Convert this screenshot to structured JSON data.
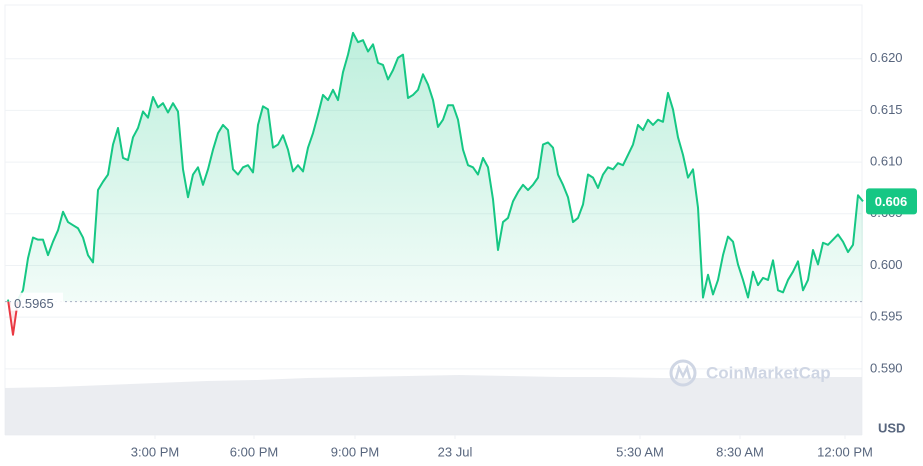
{
  "chart_data": {
    "type": "line",
    "values": [
      0.5967,
      0.5933,
      0.5967,
      0.5976,
      0.6007,
      0.6027,
      0.6025,
      0.6025,
      0.601,
      0.6023,
      0.6034,
      0.6052,
      0.6042,
      0.6039,
      0.6036,
      0.6027,
      0.601,
      0.6003,
      0.6073,
      0.6081,
      0.6088,
      0.6117,
      0.6133,
      0.6104,
      0.6102,
      0.6124,
      0.6133,
      0.6149,
      0.6143,
      0.6163,
      0.6153,
      0.6157,
      0.6148,
      0.6157,
      0.6149,
      0.6093,
      0.6066,
      0.6088,
      0.6095,
      0.6078,
      0.6093,
      0.6112,
      0.6128,
      0.6136,
      0.6131,
      0.6093,
      0.6088,
      0.6095,
      0.6097,
      0.609,
      0.6136,
      0.6154,
      0.6151,
      0.6114,
      0.6117,
      0.6126,
      0.6112,
      0.6091,
      0.6097,
      0.6091,
      0.6114,
      0.6128,
      0.6146,
      0.6165,
      0.616,
      0.617,
      0.616,
      0.6187,
      0.6204,
      0.6225,
      0.6216,
      0.6218,
      0.6207,
      0.6214,
      0.6196,
      0.6194,
      0.618,
      0.6189,
      0.6201,
      0.6204,
      0.6162,
      0.6165,
      0.617,
      0.6185,
      0.6175,
      0.616,
      0.6134,
      0.6141,
      0.6155,
      0.6155,
      0.6141,
      0.6112,
      0.6097,
      0.6095,
      0.6088,
      0.6104,
      0.6095,
      0.6064,
      0.6015,
      0.6042,
      0.6046,
      0.6062,
      0.6071,
      0.6078,
      0.6073,
      0.6078,
      0.6085,
      0.6117,
      0.6119,
      0.6114,
      0.6088,
      0.6078,
      0.6066,
      0.6042,
      0.6046,
      0.6059,
      0.6088,
      0.6085,
      0.6075,
      0.6088,
      0.6095,
      0.6093,
      0.6099,
      0.6097,
      0.6107,
      0.6117,
      0.6136,
      0.6131,
      0.6141,
      0.6136,
      0.6141,
      0.6139,
      0.6167,
      0.6151,
      0.6124,
      0.6107,
      0.6085,
      0.6093,
      0.6056,
      0.5969,
      0.5991,
      0.5972,
      0.5986,
      0.601,
      0.6028,
      0.6023,
      0.6001,
      0.5986,
      0.5969,
      0.5994,
      0.5981,
      0.5988,
      0.5986,
      0.6005,
      0.5976,
      0.5974,
      0.5986,
      0.5994,
      0.6004,
      0.5976,
      0.5986,
      0.6015,
      0.6001,
      0.6022,
      0.602,
      0.6025,
      0.603,
      0.6023,
      0.6013,
      0.602,
      0.6068,
      0.6062
    ],
    "color": "#16c784",
    "down_color": "#ea3943",
    "xlim": [
      0,
      171
    ],
    "xticks": [
      {
        "value": 29.4,
        "label": "3:00 PM"
      },
      {
        "value": 49.2,
        "label": "6:00 PM"
      },
      {
        "value": 69.4,
        "label": "9:00 PM"
      },
      {
        "value": 89.4,
        "label": "23 Jul"
      },
      {
        "value": 126.4,
        "label": "5:30 AM"
      },
      {
        "value": 146.4,
        "label": "8:30 AM"
      },
      {
        "value": 167.4,
        "label": "12:00 PM"
      }
    ],
    "ylim": [
      0.5836,
      0.6252
    ],
    "yticks": [
      {
        "value": 0.59,
        "label": "0.590"
      },
      0.595,
      {
        "value": 0.6,
        "label": "0.600"
      },
      0.605,
      {
        "value": 0.61,
        "label": "0.610"
      },
      0.615,
      {
        "value": 0.62,
        "label": "0.620"
      }
    ],
    "grid": true,
    "reference": 0.5965,
    "price_label": {
      "value": 0.6062,
      "label": "0.606"
    },
    "currency": "USD",
    "watermark": "CoinMarketCap",
    "volume": {
      "values": [
        47,
        48,
        50,
        52,
        54,
        55,
        57,
        58,
        59,
        60,
        59,
        58,
        58,
        57,
        57,
        57,
        58,
        58
      ],
      "ylim": [
        0,
        100
      ]
    }
  }
}
